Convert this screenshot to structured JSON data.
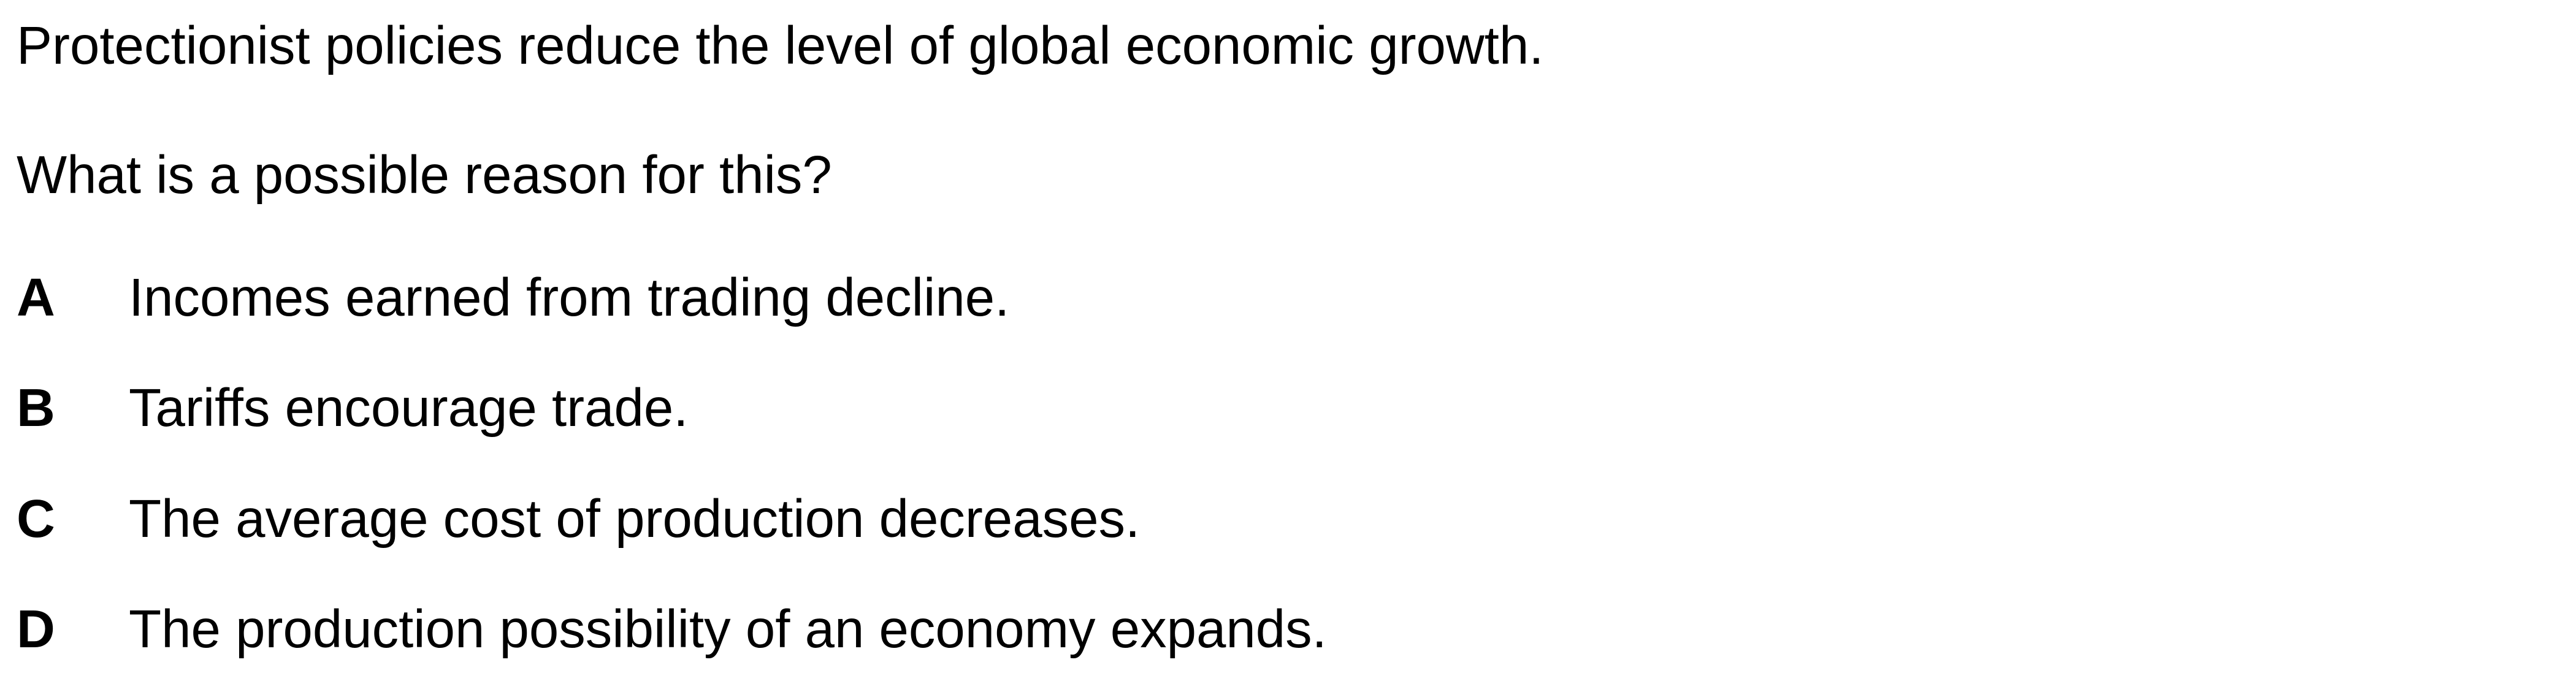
{
  "question": {
    "statement": "Protectionist policies reduce the level of global economic growth.",
    "prompt": "What is a possible reason for this?",
    "options": [
      {
        "letter": "A",
        "text": "Incomes earned from trading decline."
      },
      {
        "letter": "B",
        "text": "Tariffs encourage trade."
      },
      {
        "letter": "C",
        "text": "The average cost of production decreases."
      },
      {
        "letter": "D",
        "text": "The production possibility of an economy expands."
      }
    ]
  }
}
